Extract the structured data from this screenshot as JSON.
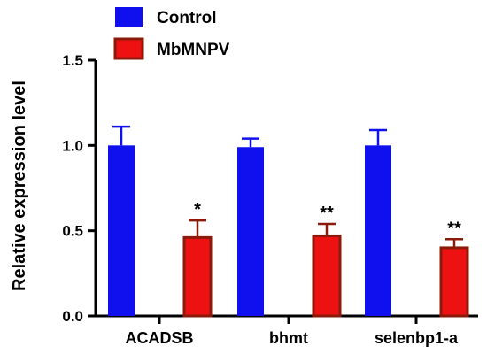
{
  "chart_data": {
    "type": "bar",
    "ylabel": "Relative expression level",
    "xlabel": "",
    "ylim": [
      0,
      1.5
    ],
    "yticks": [
      "0.0",
      "0.5",
      "1.0",
      "1.5"
    ],
    "categories": [
      "ACADSB",
      "bhmt",
      "selenbp1-a"
    ],
    "series": [
      {
        "name": "Control",
        "color": "#1010ee",
        "values": [
          1.0,
          0.99,
          1.0
        ],
        "errors": [
          0.11,
          0.05,
          0.09
        ],
        "significance": [
          "",
          "",
          ""
        ]
      },
      {
        "name": "MbMNPV",
        "color": "#ee1111",
        "edge_color": "#8b1a0a",
        "values": [
          0.46,
          0.47,
          0.4
        ],
        "errors": [
          0.1,
          0.07,
          0.05
        ],
        "significance": [
          "*",
          "**",
          "**"
        ]
      }
    ],
    "legend_position": "top"
  }
}
